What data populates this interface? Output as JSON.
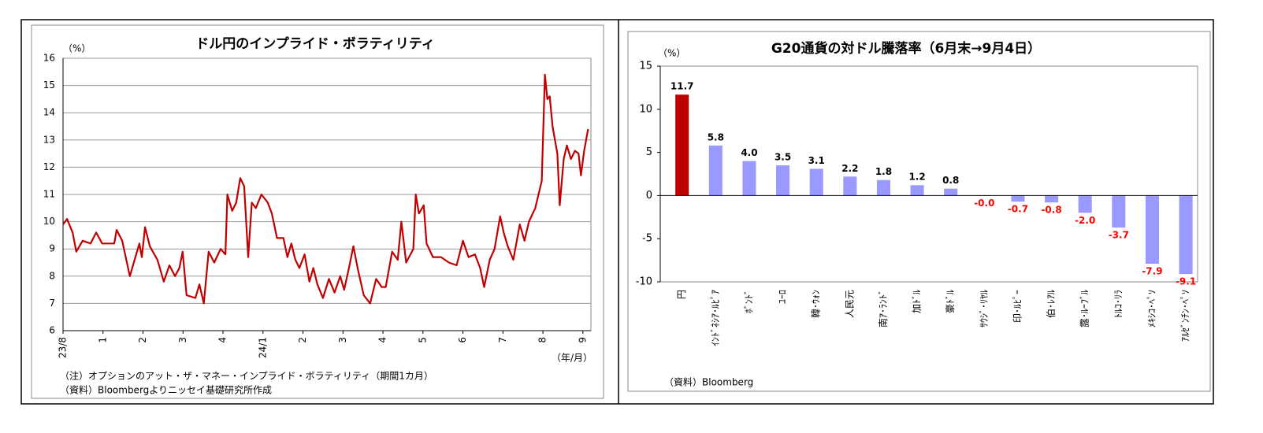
{
  "chart_data": [
    {
      "type": "line",
      "title": "ドル円のインプライド・ボラティリティ",
      "y_label": "（%）",
      "x_label": "（年/月）",
      "notes": [
        "（注）オプションのアット・ザ・マネー・インプライド・ボラティリティ（期間1カ月）",
        "（資料）Bloombergよりニッセイ基礎研究所作成"
      ],
      "x": [
        0,
        0.1,
        0.24,
        0.33,
        0.49,
        0.69,
        0.83,
        0.98,
        1.28,
        1.34,
        1.48,
        1.67,
        1.91,
        1.97,
        2.05,
        2.17,
        2.36,
        2.52,
        2.66,
        2.8,
        2.91,
        2.99,
        3.09,
        3.31,
        3.41,
        3.52,
        3.64,
        3.78,
        3.94,
        4.06,
        4.11,
        4.23,
        4.33,
        4.43,
        4.53,
        4.63,
        4.72,
        4.82,
        4.96,
        5.12,
        5.22,
        5.35,
        5.51,
        5.61,
        5.71,
        5.81,
        5.91,
        6.04,
        6.16,
        6.26,
        6.36,
        6.5,
        6.65,
        6.79,
        6.93,
        7.03,
        7.15,
        7.26,
        7.38,
        7.52,
        7.68,
        7.83,
        7.97,
        8.07,
        8.23,
        8.37,
        8.46,
        8.58,
        8.76,
        8.82,
        8.9,
        9.02,
        9.09,
        9.25,
        9.45,
        9.65,
        9.84,
        10.0,
        10.14,
        10.3,
        10.43,
        10.53,
        10.67,
        10.79,
        10.93,
        11.02,
        11.12,
        11.26,
        11.42,
        11.54,
        11.65,
        11.81,
        11.97,
        12.05,
        12.11,
        12.17,
        12.24,
        12.36,
        12.42,
        12.52,
        12.6,
        12.7,
        12.8,
        12.89,
        12.95,
        13.03,
        13.13
      ],
      "series": [
        {
          "color": "#c00000",
          "values": [
            9.9,
            10.1,
            9.6,
            8.9,
            9.3,
            9.2,
            9.6,
            9.2,
            9.2,
            9.7,
            9.3,
            8.0,
            9.2,
            8.7,
            9.8,
            9.1,
            8.6,
            7.8,
            8.4,
            8.0,
            8.3,
            8.9,
            7.3,
            7.2,
            7.7,
            7.0,
            8.9,
            8.5,
            9.0,
            8.8,
            11.0,
            10.4,
            10.7,
            11.6,
            11.3,
            8.7,
            10.7,
            10.5,
            11.0,
            10.7,
            10.3,
            9.4,
            9.4,
            8.7,
            9.2,
            8.6,
            8.3,
            8.8,
            7.8,
            8.3,
            7.7,
            7.2,
            7.9,
            7.4,
            8.0,
            7.5,
            8.3,
            9.1,
            8.2,
            7.3,
            7.0,
            7.9,
            7.6,
            7.6,
            8.9,
            8.6,
            10.0,
            8.5,
            9.0,
            11.0,
            10.3,
            10.6,
            9.2,
            8.7,
            8.7,
            8.5,
            8.4,
            9.3,
            8.7,
            8.8,
            8.3,
            7.6,
            8.6,
            9.0,
            10.2,
            9.6,
            9.1,
            8.6,
            9.9,
            9.3,
            10.0,
            10.5,
            11.5,
            15.4,
            14.5,
            14.6,
            13.5,
            12.5,
            10.6,
            12.3,
            12.8,
            12.3,
            12.6,
            12.5,
            11.7,
            12.6,
            13.4
          ]
        }
      ],
      "xlim": [
        0,
        13.2
      ],
      "xticks": [
        {
          "value": 0,
          "label": "23/8"
        },
        1,
        2,
        3,
        4,
        {
          "value": 5,
          "label": "24/1"
        },
        {
          "value": 6,
          "label": "2"
        },
        {
          "value": 7,
          "label": "3"
        },
        {
          "value": 8,
          "label": "4"
        },
        {
          "value": 9,
          "label": "5"
        },
        {
          "value": 10,
          "label": "6"
        },
        {
          "value": 11,
          "label": "7"
        },
        {
          "value": 12,
          "label": "8"
        },
        {
          "value": 13,
          "label": "9"
        }
      ],
      "ylim": [
        6,
        16
      ],
      "yticks": [
        6,
        7,
        8,
        9,
        10,
        11,
        12,
        13,
        14,
        15,
        16
      ],
      "grid": true
    },
    {
      "type": "bar",
      "title": "G20通貨の対ドル騰落率（6月末→9月4日）",
      "y_label": "（%）",
      "notes": [
        "（資料）Bloomberg"
      ],
      "categories": [
        "円",
        "ｲﾝﾄﾞﾈｼｱ･ﾙﾋﾟｱ",
        "ﾎﾟﾝﾄﾞ",
        "ﾕｰﾛ",
        "韓･ｳｫﾝ",
        "人民元",
        "南ｱ･ﾗﾝﾄﾞ",
        "加ﾄﾞﾙ",
        "豪ﾄﾞﾙ",
        "ｻｳｼﾞ･ﾘﾔﾙ",
        "印･ﾙﾋﾟｰ",
        "伯･ﾚｱﾙ",
        "露･ﾙｰﾌﾞﾙ",
        "ﾄﾙｺ･ﾘﾗ",
        "ﾒｷｼｺ･ﾍﾟｿ",
        "ｱﾙｾﾞﾝﾁﾝ･ﾍﾟｿ"
      ],
      "values": [
        11.7,
        5.8,
        4.0,
        3.5,
        3.1,
        2.2,
        1.8,
        1.2,
        0.8,
        -0.02,
        -0.7,
        -0.8,
        -2.0,
        -3.7,
        -7.9,
        -9.1
      ],
      "value_labels": [
        "11.7",
        "5.8",
        "4.0",
        "3.5",
        "3.1",
        "2.2",
        "1.8",
        "1.2",
        "0.8",
        "-0.0",
        "-0.7",
        "-0.8",
        "-2.0",
        "-3.7",
        "-7.9",
        "-9.1"
      ],
      "colors": [
        "#c00000",
        "#9999ff",
        "#9999ff",
        "#9999ff",
        "#9999ff",
        "#9999ff",
        "#9999ff",
        "#9999ff",
        "#9999ff",
        "#9999ff",
        "#9999ff",
        "#9999ff",
        "#9999ff",
        "#9999ff",
        "#9999ff",
        "#9999ff"
      ],
      "positive_label_color": "#000000",
      "negative_label_color": "#ff0000",
      "ylim": [
        -10,
        15
      ],
      "yticks": [
        -10,
        -5,
        0,
        5,
        10,
        15
      ],
      "grid": false
    }
  ]
}
